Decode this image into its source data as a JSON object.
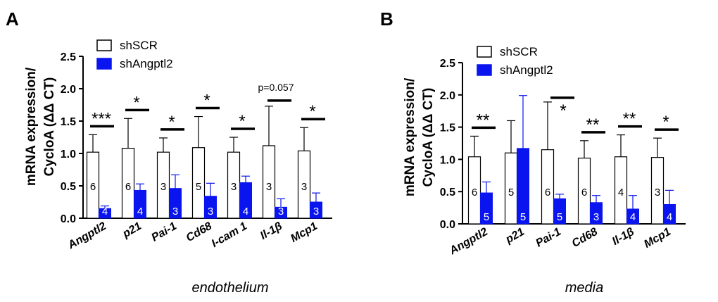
{
  "colors": {
    "scr": "#ffffff",
    "angptl2": "#0a14ee",
    "axis": "#000000"
  },
  "chart_data": [
    {
      "panel": "A",
      "type": "bar",
      "ylabel_lines": [
        "mRNA expression/",
        "CycloA (ΔΔ CT)"
      ],
      "xlabel": "endothelium",
      "ylim": [
        0,
        2.5
      ],
      "yticks": [
        "0.0",
        "0.5",
        "1.0",
        "1.5",
        "2.0",
        "2.5"
      ],
      "ytick_values": [
        0,
        0.5,
        1.0,
        1.5,
        2.0,
        2.5
      ],
      "categories": [
        "Angptl2",
        "p21",
        "Pai-1",
        "Cd68",
        "I-cam 1",
        "Il-1β",
        "Mcp1"
      ],
      "series": [
        {
          "name": "shSCR",
          "values": [
            1.02,
            1.08,
            1.02,
            1.09,
            1.02,
            1.12,
            1.04
          ],
          "errors": [
            0.27,
            0.46,
            0.22,
            0.48,
            0.23,
            0.61,
            0.36
          ],
          "n": [
            "6",
            "6",
            "3",
            "5",
            "3",
            "3",
            "3"
          ]
        },
        {
          "name": "shAngptl2",
          "values": [
            0.15,
            0.43,
            0.46,
            0.34,
            0.55,
            0.17,
            0.25
          ],
          "errors": [
            0.04,
            0.1,
            0.21,
            0.2,
            0.1,
            0.13,
            0.14
          ],
          "n": [
            "4",
            "4",
            "3",
            "3",
            "4",
            "3",
            "3"
          ]
        }
      ],
      "significance": [
        "***",
        "*",
        "*",
        "*",
        "*",
        "p=0.057",
        "*"
      ],
      "legend": [
        "shSCR",
        "shAngptl2"
      ]
    },
    {
      "panel": "B",
      "type": "bar",
      "ylabel_lines": [
        "mRNA expression/",
        "CycloA (ΔΔ CT)"
      ],
      "xlabel": "media",
      "ylim": [
        0,
        2.5
      ],
      "yticks": [
        "0.0",
        "0.5",
        "1.0",
        "1.5",
        "2.0",
        "2.5"
      ],
      "ytick_values": [
        0,
        0.5,
        1.0,
        1.5,
        2.0,
        2.5
      ],
      "categories": [
        "Angptl2",
        "p21",
        "Pai-1",
        "Cd68",
        "Il-1β",
        "Mcp1"
      ],
      "series": [
        {
          "name": "shSCR",
          "values": [
            1.04,
            1.1,
            1.15,
            1.02,
            1.04,
            1.03
          ],
          "errors": [
            0.32,
            0.5,
            0.74,
            0.27,
            0.34,
            0.3
          ],
          "n": [
            "6",
            "5",
            "6",
            "6",
            "4",
            "3"
          ]
        },
        {
          "name": "shAngptl2",
          "values": [
            0.48,
            1.17,
            0.39,
            0.33,
            0.23,
            0.3
          ],
          "errors": [
            0.17,
            0.82,
            0.07,
            0.11,
            0.21,
            0.22
          ],
          "n": [
            "5",
            "5",
            "5",
            "3",
            "4",
            "4"
          ]
        }
      ],
      "significance": [
        "**",
        "",
        "*",
        "**",
        "**",
        "*"
      ],
      "legend": [
        "shSCR",
        "shAngptl2"
      ]
    }
  ]
}
